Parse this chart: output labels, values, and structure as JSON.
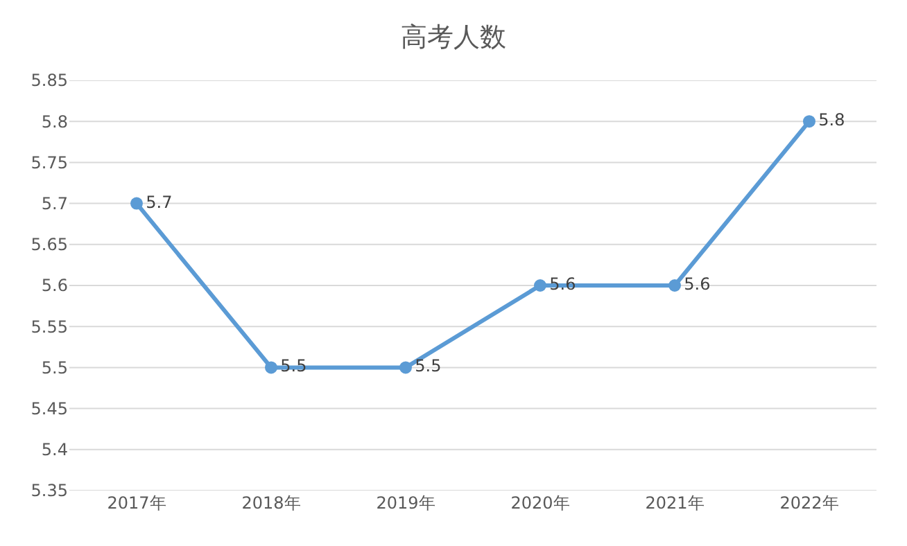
{
  "chart_data": {
    "type": "line",
    "title": "高考人数",
    "categories": [
      "2017年",
      "2018年",
      "2019年",
      "2020年",
      "2021年",
      "2022年"
    ],
    "series": [
      {
        "color": "#5b9bd5",
        "values": [
          5.7,
          5.5,
          5.5,
          5.6,
          5.6,
          5.8
        ]
      }
    ],
    "ylim": [
      5.35,
      5.85
    ],
    "yticks": [
      5.35,
      5.4,
      5.45,
      5.5,
      5.55,
      5.6,
      5.65,
      5.7,
      5.75,
      5.8,
      5.85
    ],
    "grid": "y",
    "marker": "circle",
    "line_style": "solid",
    "data_labels": true
  }
}
